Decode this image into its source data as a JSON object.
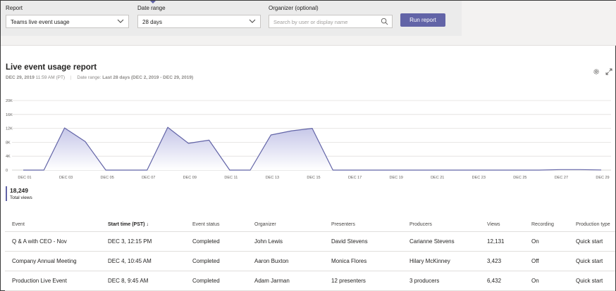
{
  "filters": {
    "report_label": "Report",
    "report_value": "Teams live event usage",
    "date_label": "Date range",
    "date_value": "28 days",
    "organizer_label": "Organizer (optional)",
    "organizer_placeholder": "Search by user or display name",
    "run_label": "Run report"
  },
  "report": {
    "title": "Live event usage report",
    "date": "DEC 29, 2019",
    "time": "11:59 AM (PT)",
    "range_label": "Date range:",
    "range_value": "Last 28 days (DEC 2, 2019 - DEC 29, 2019)"
  },
  "chart_data": {
    "type": "area",
    "x": [
      "DEC 01",
      "DEC 02",
      "DEC 03",
      "DEC 04",
      "DEC 05",
      "DEC 06",
      "DEC 07",
      "DEC 08",
      "DEC 09",
      "DEC 10",
      "DEC 11",
      "DEC 12",
      "DEC 13",
      "DEC 14",
      "DEC 15",
      "DEC 16",
      "DEC 17",
      "DEC 18",
      "DEC 19",
      "DEC 20",
      "DEC 21",
      "DEC 22",
      "DEC 23",
      "DEC 24",
      "DEC 25",
      "DEC 26",
      "DEC 27",
      "DEC 28",
      "DEC 29"
    ],
    "tick_labels": [
      "DEC 01",
      "DEC 03",
      "DEC 05",
      "DEC 07",
      "DEC 09",
      "DEC 11",
      "DEC 13",
      "DEC 15",
      "DEC 17",
      "DEC 19",
      "DEC 21",
      "DEC 23",
      "DEC 25",
      "DEC 27",
      "DEC 29"
    ],
    "values": [
      0,
      0,
      12131,
      8200,
      0,
      0,
      0,
      12300,
      7700,
      8600,
      0,
      0,
      10100,
      11300,
      12000,
      0,
      0,
      0,
      0,
      0,
      0,
      0,
      0,
      0,
      0,
      0,
      150,
      150,
      50
    ],
    "y_ticks": [
      "0",
      "4K",
      "8K",
      "12K",
      "16K",
      "20K"
    ],
    "ylim": [
      0,
      20000
    ],
    "grid": true,
    "colors": {
      "line": "#6264a7",
      "fill_top": "#c5c6e8",
      "fill_bottom": "#ffffff"
    }
  },
  "totals": {
    "value": "18,249",
    "label": "Total views"
  },
  "table": {
    "columns": [
      "Event",
      "Start time (PST)",
      "Event status",
      "Organizer",
      "Presenters",
      "Producers",
      "Views",
      "Recording",
      "Production type"
    ],
    "sort_arrow": "↓",
    "rows": [
      [
        "Q & A with CEO - Nov",
        "DEC 3, 12:15 PM",
        "Completed",
        "John Lewis",
        "David Stevens",
        "Carianne Stevens",
        "12,131",
        "On",
        "Quick start"
      ],
      [
        "Company Annual Meeting",
        "DEC 4, 10:45 AM",
        "Completed",
        "Aaron Buxton",
        "Monica Flores",
        "Hilary McKinney",
        "3,423",
        "Off",
        "Quick start"
      ],
      [
        "Production Live Event",
        "DEC 8, 9:45 AM",
        "Completed",
        "Adam Jarman",
        "12 presenters",
        "3 producers",
        "6,432",
        "On",
        "Quick start"
      ]
    ]
  }
}
